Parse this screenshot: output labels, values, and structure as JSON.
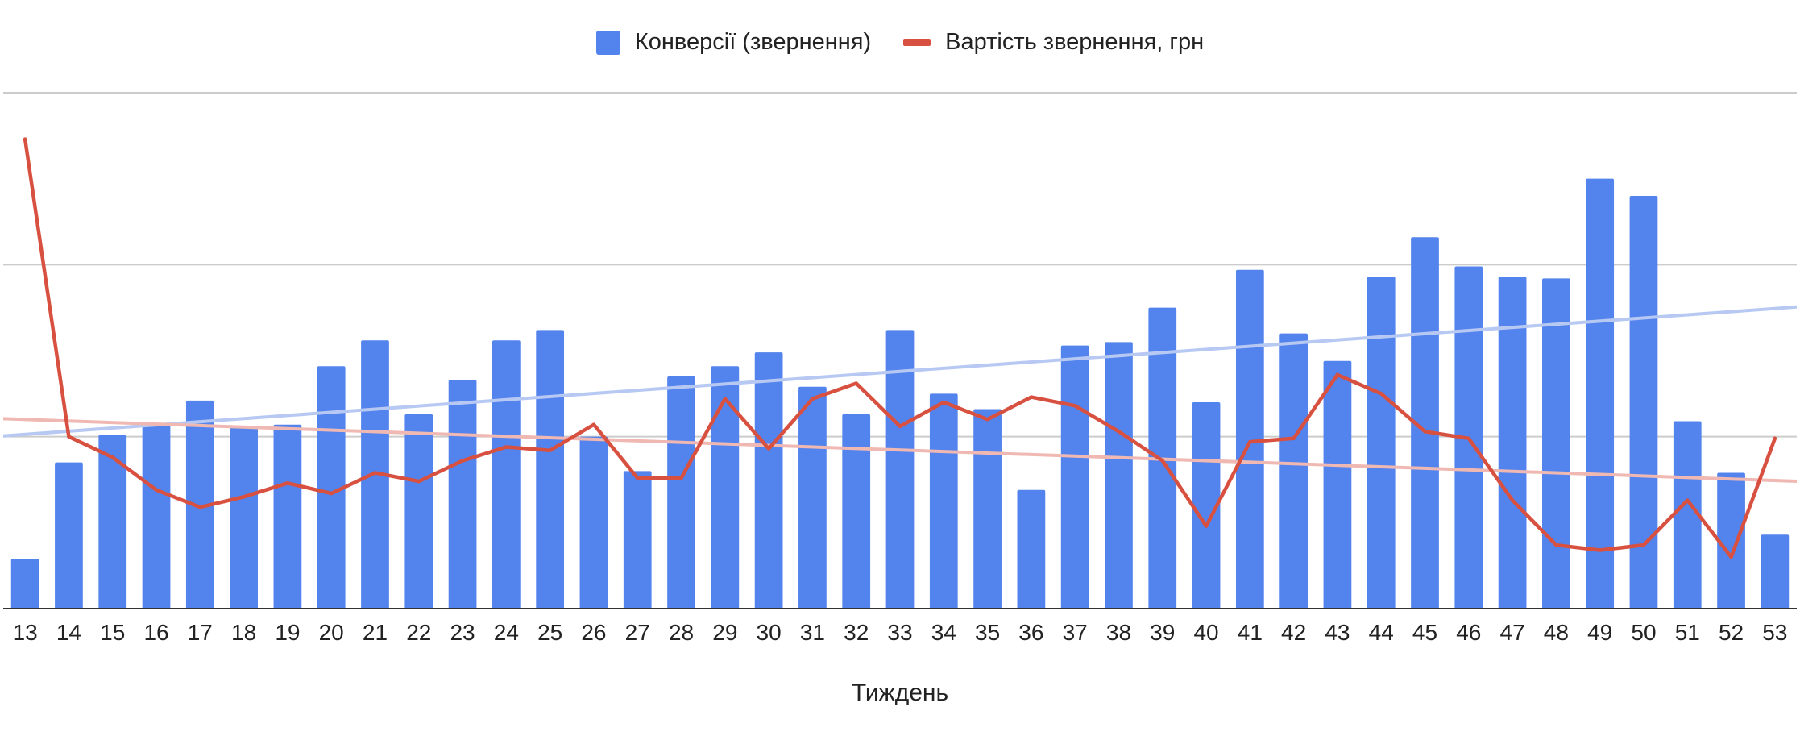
{
  "chart_data": {
    "type": "bar",
    "title": "",
    "xlabel": "Тиждень",
    "ylabel": "",
    "categories": [
      "13",
      "14",
      "15",
      "16",
      "17",
      "18",
      "19",
      "20",
      "21",
      "22",
      "23",
      "24",
      "25",
      "26",
      "27",
      "28",
      "29",
      "30",
      "31",
      "32",
      "33",
      "34",
      "35",
      "36",
      "37",
      "38",
      "39",
      "40",
      "41",
      "42",
      "43",
      "44",
      "45",
      "46",
      "47",
      "48",
      "49",
      "50",
      "51",
      "52",
      "53"
    ],
    "ylim": [
      0,
      3
    ],
    "grid": true,
    "legend_position": "top",
    "series": [
      {
        "name": "Конверсії (звернення)",
        "type": "bar",
        "color": "#5383ec",
        "trendline": true,
        "trend_color": "#b7c9f3",
        "values": [
          0.29,
          0.85,
          1.01,
          1.08,
          1.21,
          1.06,
          1.07,
          1.41,
          1.56,
          1.13,
          1.33,
          1.56,
          1.62,
          1.0,
          0.8,
          1.35,
          1.41,
          1.49,
          1.29,
          1.13,
          1.62,
          1.25,
          1.16,
          0.69,
          1.53,
          1.55,
          1.75,
          1.2,
          1.97,
          1.6,
          1.44,
          1.93,
          2.16,
          1.99,
          1.93,
          1.92,
          2.5,
          2.4,
          1.09,
          0.79,
          0.43
        ]
      },
      {
        "name": "Вартість звернення, грн",
        "type": "line",
        "color": "#d85140",
        "trendline": true,
        "trend_color": "#f0b8b2",
        "values": [
          2.73,
          1.0,
          0.88,
          0.69,
          0.59,
          0.65,
          0.73,
          0.67,
          0.79,
          0.74,
          0.86,
          0.94,
          0.92,
          1.07,
          0.76,
          0.76,
          1.22,
          0.93,
          1.22,
          1.31,
          1.06,
          1.2,
          1.1,
          1.23,
          1.18,
          1.03,
          0.86,
          0.48,
          0.97,
          0.99,
          1.36,
          1.25,
          1.03,
          0.99,
          0.63,
          0.37,
          0.34,
          0.37,
          0.63,
          0.3,
          0.99
        ]
      }
    ]
  }
}
